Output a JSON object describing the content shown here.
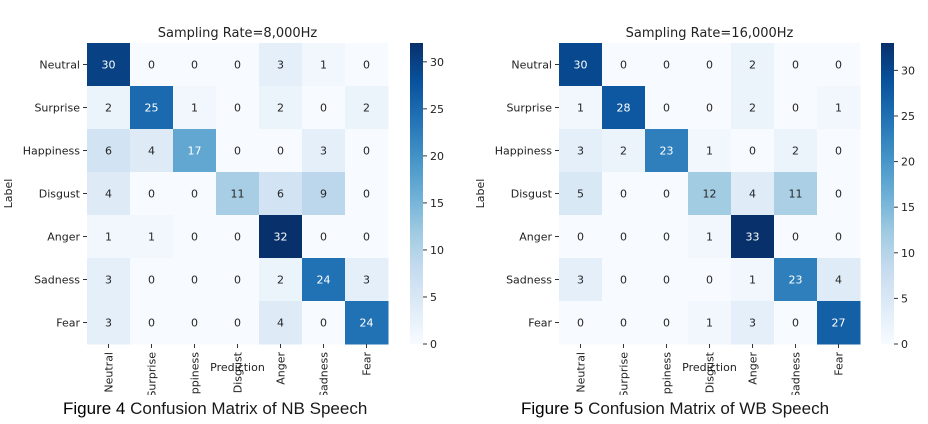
{
  "chart_data": [
    {
      "type": "heatmap",
      "title": "Sampling Rate=8,000Hz",
      "xlabel": "Prediction",
      "ylabel": "Label",
      "x_categories": [
        "Neutral",
        "Surprise",
        "Happiness",
        "Disgust",
        "Anger",
        "Sadness",
        "Fear"
      ],
      "y_categories": [
        "Neutral",
        "Surprise",
        "Happiness",
        "Disgust",
        "Anger",
        "Sadness",
        "Fear"
      ],
      "values": [
        [
          30,
          0,
          0,
          0,
          3,
          1,
          0
        ],
        [
          2,
          25,
          1,
          0,
          2,
          0,
          2
        ],
        [
          6,
          4,
          17,
          0,
          0,
          3,
          0
        ],
        [
          4,
          0,
          0,
          11,
          6,
          9,
          0
        ],
        [
          1,
          1,
          0,
          0,
          32,
          0,
          0
        ],
        [
          3,
          0,
          0,
          0,
          2,
          24,
          3
        ],
        [
          3,
          0,
          0,
          0,
          4,
          0,
          24
        ]
      ],
      "colorbar_range": [
        0,
        32
      ],
      "colorbar_ticks": [
        0,
        5,
        10,
        15,
        20,
        25,
        30
      ],
      "colormap": "Blues"
    },
    {
      "type": "heatmap",
      "title": "Sampling Rate=16,000Hz",
      "xlabel": "Prediction",
      "ylabel": "Label",
      "x_categories": [
        "Neutral",
        "Surprise",
        "Happiness",
        "Disgust",
        "Anger",
        "Sadness",
        "Fear"
      ],
      "y_categories": [
        "Neutral",
        "Surprise",
        "Happiness",
        "Disgust",
        "Anger",
        "Sadness",
        "Fear"
      ],
      "values": [
        [
          30,
          0,
          0,
          0,
          2,
          0,
          0
        ],
        [
          1,
          28,
          0,
          0,
          2,
          0,
          1
        ],
        [
          3,
          2,
          23,
          1,
          0,
          2,
          0
        ],
        [
          5,
          0,
          0,
          12,
          4,
          11,
          0
        ],
        [
          0,
          0,
          0,
          1,
          33,
          0,
          0
        ],
        [
          3,
          0,
          0,
          0,
          1,
          23,
          4
        ],
        [
          0,
          0,
          0,
          1,
          3,
          0,
          27
        ]
      ],
      "colorbar_range": [
        0,
        33
      ],
      "colorbar_ticks": [
        0,
        5,
        10,
        15,
        20,
        25,
        30
      ],
      "colormap": "Blues"
    }
  ],
  "captions": [
    {
      "figure_label": "Figure 4",
      "text": "Confusion Matrix of NB Speech"
    },
    {
      "figure_label": "Figure 5",
      "text": "Confusion Matrix of WB Speech"
    }
  ]
}
